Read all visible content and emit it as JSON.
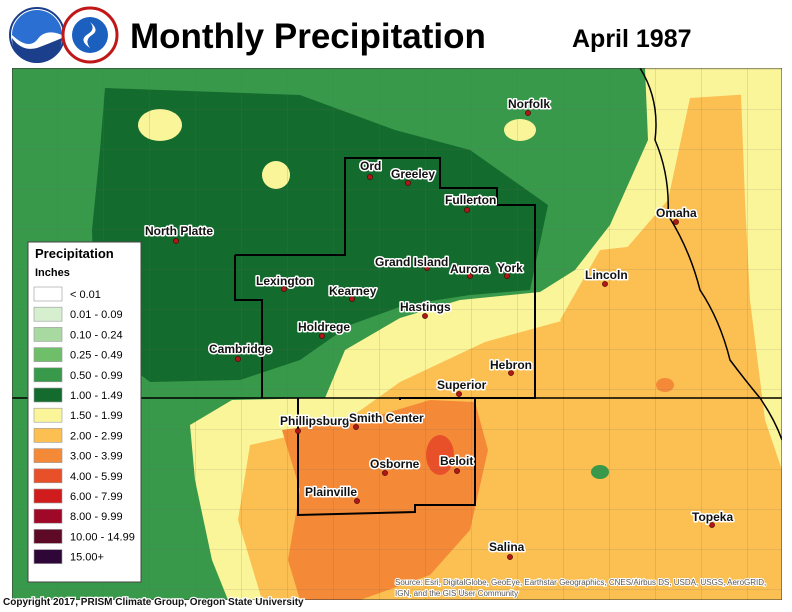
{
  "header": {
    "title": "Monthly Precipitation",
    "date": "April 1987"
  },
  "legend": {
    "title": "Precipitation",
    "units": "Inches",
    "items": [
      {
        "label": "< 0.01",
        "color": "#ffffff"
      },
      {
        "label": "0.01 - 0.09",
        "color": "#d6f0cf"
      },
      {
        "label": "0.10 - 0.24",
        "color": "#a8d9a0"
      },
      {
        "label": "0.25 - 0.49",
        "color": "#6fbf6a"
      },
      {
        "label": "0.50 - 0.99",
        "color": "#38994a"
      },
      {
        "label": "1.00 - 1.49",
        "color": "#146b2e"
      },
      {
        "label": "1.50 - 1.99",
        "color": "#fbf59a"
      },
      {
        "label": "2.00 - 2.99",
        "color": "#fbbf52"
      },
      {
        "label": "3.00 - 3.99",
        "color": "#f48a38"
      },
      {
        "label": "4.00 - 5.99",
        "color": "#e8502a"
      },
      {
        "label": "6.00 - 7.99",
        "color": "#d01c1c"
      },
      {
        "label": "8.00 - 9.99",
        "color": "#a00828"
      },
      {
        "label": "10.00 - 14.99",
        "color": "#5e0a26"
      },
      {
        "label": "15.00+",
        "color": "#2e0638"
      }
    ]
  },
  "cities": [
    "Norfolk",
    "Ord",
    "Greeley",
    "Fullerton",
    "North Platte",
    "Omaha",
    "Lincoln",
    "Grand Island",
    "Aurora",
    "York",
    "Lexington",
    "Kearney",
    "Hastings",
    "Holdrege",
    "Cambridge",
    "Hebron",
    "Superior",
    "Phillipsburg",
    "Smith Center",
    "Osborne",
    "Beloit",
    "Plainville",
    "Salina",
    "Topeka"
  ],
  "footer": {
    "copyright": "Copyright 2017, PRISM Climate Group, Oregon State University",
    "source": [
      "Source: Esri, DigitalGlobe, GeoEye, Earthstar Geographics, CNES/Airbus DS, USDA, USGS, AeroGRID,",
      "IGN, and the GIS User Community"
    ]
  }
}
